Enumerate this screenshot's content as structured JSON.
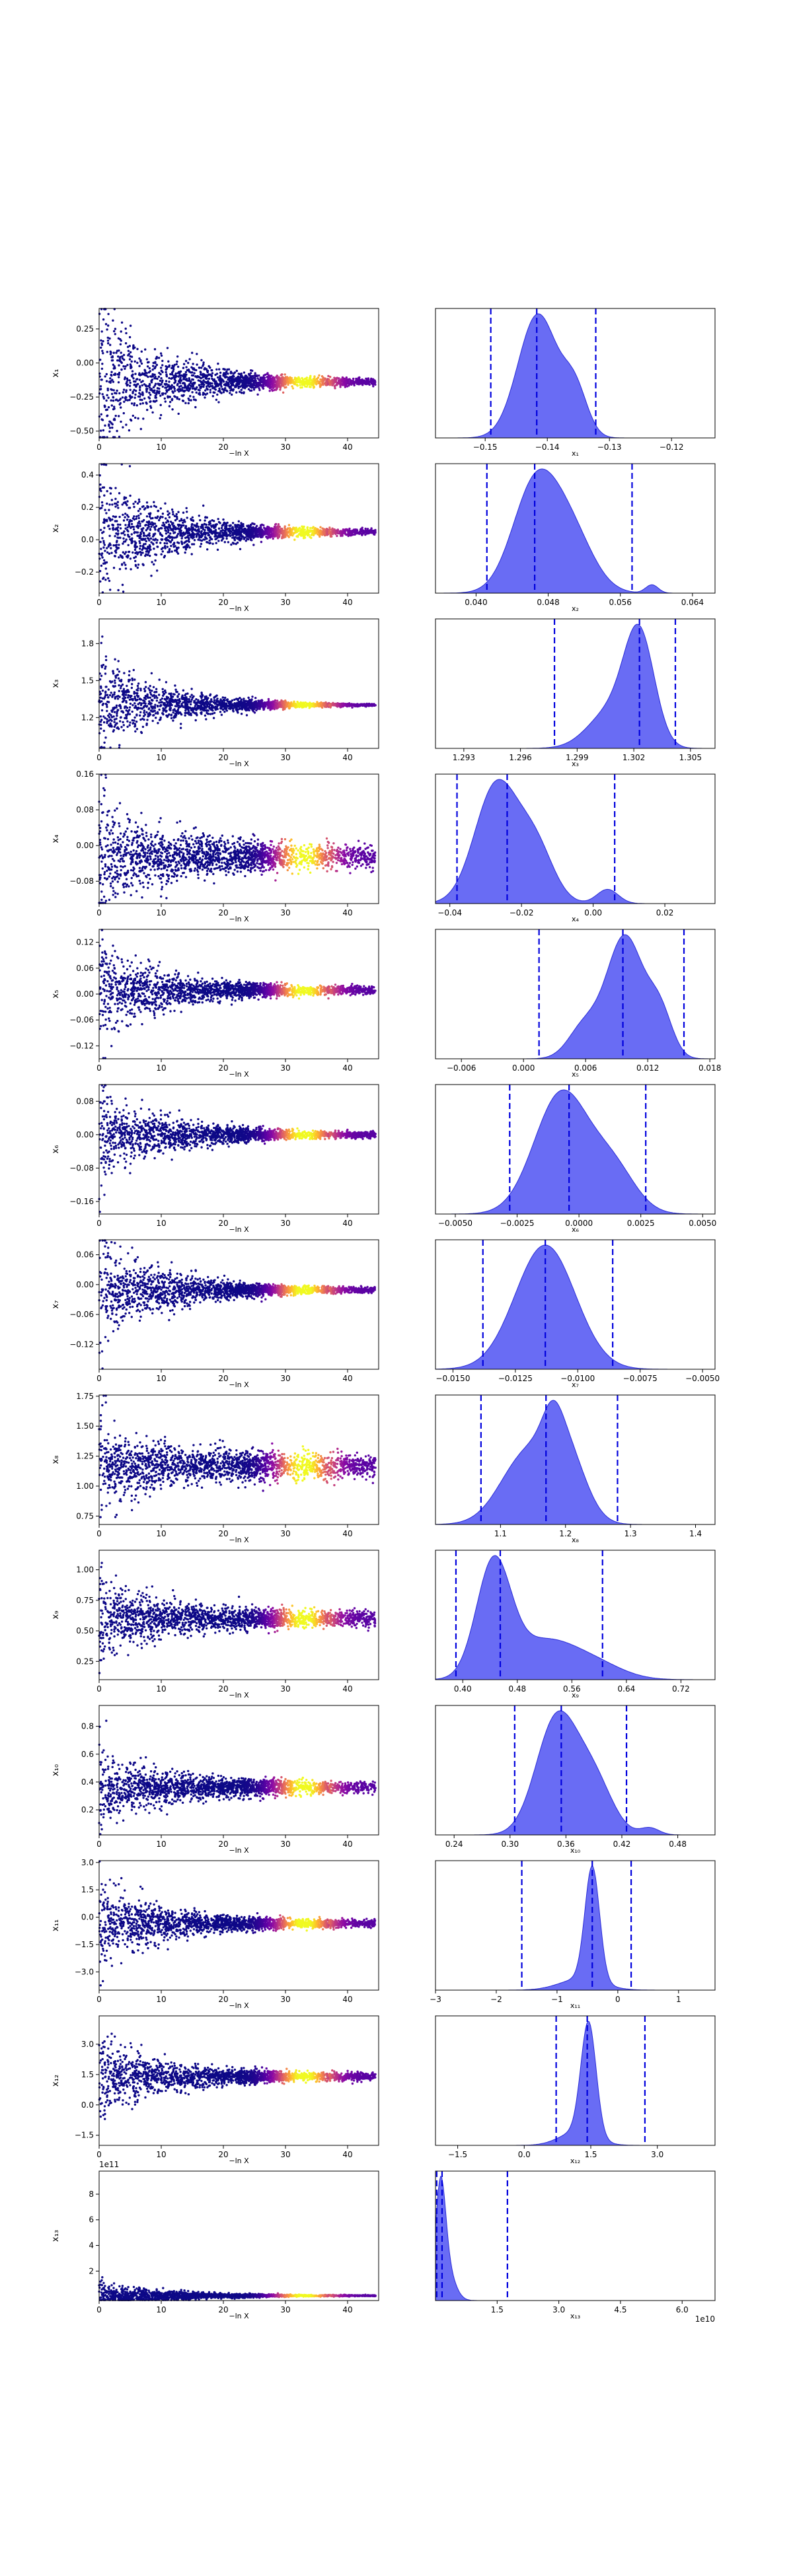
{
  "figure": {
    "type": "dynesty-traceplot"
  },
  "colors": {
    "trace_low": "#0d0887",
    "trace_high": "#f0f921",
    "kde_fill": "#4f52f2",
    "kde_edge": "#2a2cd6",
    "quantile": "#0000dd"
  },
  "chart_data": [
    {
      "param": "x1",
      "trace_xlabel": "−ln X",
      "trace_xticks": [
        "0",
        "10",
        "20",
        "30",
        "40"
      ],
      "trace_xlim": [
        0,
        45
      ],
      "trace_ylabel": "x₁",
      "trace_yticks": [
        "−0.50",
        "−0.25",
        "0.00",
        "0.25"
      ],
      "trace_ylim": [
        -0.55,
        0.4
      ],
      "trace_center": -0.14,
      "trace_spread_early": 0.25,
      "trace_spread_late": 0.008,
      "kde_xlabel": "x₁",
      "kde_xticks": [
        "−0.15",
        "−0.14",
        "−0.13",
        "−0.12"
      ],
      "kde_tick_values": [
        -0.15,
        -0.14,
        -0.13,
        -0.12
      ],
      "kde_xlim": [
        -0.158,
        -0.113
      ],
      "kde_peaks": [
        {
          "mu": -0.1415,
          "sigma": 0.0032,
          "h": 1.0
        },
        {
          "mu": -0.1355,
          "sigma": 0.002,
          "h": 0.35
        }
      ],
      "quantiles": [
        -0.1491,
        -0.1417,
        -0.1322
      ]
    },
    {
      "param": "x2",
      "trace_xlabel": "−ln X",
      "trace_xticks": [
        "0",
        "10",
        "20",
        "30",
        "40"
      ],
      "trace_xlim": [
        0,
        45
      ],
      "trace_ylabel": "x₂",
      "trace_yticks": [
        "−0.2",
        "0.0",
        "0.2",
        "0.4"
      ],
      "trace_ylim": [
        -0.33,
        0.47
      ],
      "trace_center": 0.048,
      "trace_spread_early": 0.2,
      "trace_spread_late": 0.005,
      "kde_xlabel": "x₂",
      "kde_xticks": [
        "0.040",
        "0.048",
        "0.056",
        "0.064"
      ],
      "kde_tick_values": [
        0.04,
        0.048,
        0.056,
        0.064
      ],
      "kde_xlim": [
        0.0355,
        0.0665
      ],
      "kde_peaks": [
        {
          "mu": 0.0465,
          "sigma": 0.0025,
          "h": 1.0
        },
        {
          "mu": 0.0505,
          "sigma": 0.0025,
          "h": 0.55
        },
        {
          "mu": 0.0595,
          "sigma": 0.0007,
          "h": 0.08
        }
      ],
      "quantiles": [
        0.0412,
        0.0465,
        0.0573
      ]
    },
    {
      "param": "x3",
      "trace_xlabel": "−ln X",
      "trace_xticks": [
        "0",
        "10",
        "20",
        "30",
        "40"
      ],
      "trace_xlim": [
        0,
        45
      ],
      "trace_ylabel": "x₃",
      "trace_yticks": [
        "1.2",
        "1.5",
        "1.8"
      ],
      "trace_ylim": [
        0.95,
        2.0
      ],
      "trace_center": 1.302,
      "trace_spread_early": 0.18,
      "trace_spread_late": 0.002,
      "kde_xlabel": "x₃",
      "kde_xticks": [
        "1.293",
        "1.296",
        "1.299",
        "1.302",
        "1.305"
      ],
      "kde_tick_values": [
        1.293,
        1.296,
        1.299,
        1.302,
        1.305
      ],
      "kde_xlim": [
        1.2915,
        1.3063
      ],
      "kde_peaks": [
        {
          "mu": 1.3023,
          "sigma": 0.0008,
          "h": 1.0
        },
        {
          "mu": 1.3008,
          "sigma": 0.0012,
          "h": 0.35
        }
      ],
      "quantiles": [
        1.2978,
        1.3023,
        1.3042
      ]
    },
    {
      "param": "x4",
      "trace_xlabel": "−ln X",
      "trace_xticks": [
        "0",
        "10",
        "20",
        "30",
        "40"
      ],
      "trace_xlim": [
        0,
        45
      ],
      "trace_ylabel": "x₄",
      "trace_yticks": [
        "−0.08",
        "0.00",
        "0.08",
        "0.16"
      ],
      "trace_ylim": [
        -0.13,
        0.16
      ],
      "trace_center": -0.025,
      "trace_spread_early": 0.06,
      "trace_spread_late": 0.012,
      "kde_xlabel": "x₄",
      "kde_xticks": [
        "−0.04",
        "−0.02",
        "0.00",
        "0.02"
      ],
      "kde_tick_values": [
        -0.04,
        -0.02,
        0.0,
        0.02
      ],
      "kde_xlim": [
        -0.044,
        0.034
      ],
      "kde_peaks": [
        {
          "mu": -0.027,
          "sigma": 0.006,
          "h": 1.0
        },
        {
          "mu": -0.016,
          "sigma": 0.005,
          "h": 0.45
        },
        {
          "mu": 0.004,
          "sigma": 0.003,
          "h": 0.12
        }
      ],
      "quantiles": [
        -0.038,
        -0.024,
        0.006
      ]
    },
    {
      "param": "x5",
      "trace_xlabel": "−ln X",
      "trace_xticks": [
        "0",
        "10",
        "20",
        "30",
        "40"
      ],
      "trace_xlim": [
        0,
        45
      ],
      "trace_ylabel": "x₅",
      "trace_yticks": [
        "−0.12",
        "−0.06",
        "0.00",
        "0.06",
        "0.12"
      ],
      "trace_ylim": [
        -0.15,
        0.15
      ],
      "trace_center": 0.009,
      "trace_spread_early": 0.05,
      "trace_spread_late": 0.004,
      "kde_xlabel": "x₅",
      "kde_xticks": [
        "−0.006",
        "0.000",
        "0.006",
        "0.012",
        "0.018"
      ],
      "kde_tick_values": [
        -0.006,
        0.0,
        0.006,
        0.012,
        0.018
      ],
      "kde_xlim": [
        -0.0085,
        0.0185
      ],
      "kde_peaks": [
        {
          "mu": 0.0098,
          "sigma": 0.0018,
          "h": 1.0
        },
        {
          "mu": 0.0058,
          "sigma": 0.0015,
          "h": 0.25
        },
        {
          "mu": 0.0132,
          "sigma": 0.0012,
          "h": 0.35
        }
      ],
      "quantiles": [
        0.0015,
        0.0096,
        0.0155
      ]
    },
    {
      "param": "x6",
      "trace_xlabel": "−ln X",
      "trace_xticks": [
        "0",
        "10",
        "20",
        "30",
        "40"
      ],
      "trace_xlim": [
        0,
        45
      ],
      "trace_ylabel": "x₆",
      "trace_yticks": [
        "−0.16",
        "−0.08",
        "0.00",
        "0.08"
      ],
      "trace_ylim": [
        -0.19,
        0.12
      ],
      "trace_center": -0.0003,
      "trace_spread_early": 0.05,
      "trace_spread_late": 0.003,
      "kde_xlabel": "x₆",
      "kde_xticks": [
        "−0.0050",
        "−0.0025",
        "0.0000",
        "0.0025",
        "0.0050"
      ],
      "kde_tick_values": [
        -0.005,
        -0.0025,
        0,
        0.0025,
        0.005
      ],
      "kde_xlim": [
        -0.0058,
        0.0055
      ],
      "kde_peaks": [
        {
          "mu": -0.0007,
          "sigma": 0.0011,
          "h": 1.0
        },
        {
          "mu": 0.0014,
          "sigma": 0.0009,
          "h": 0.35
        }
      ],
      "quantiles": [
        -0.0028,
        -0.0004,
        0.0027
      ]
    },
    {
      "param": "x7",
      "trace_xlabel": "−ln X",
      "trace_xticks": [
        "0",
        "10",
        "20",
        "30",
        "40"
      ],
      "trace_xlim": [
        0,
        45
      ],
      "trace_ylabel": "x₇",
      "trace_yticks": [
        "−0.12",
        "−0.06",
        "0.00",
        "0.06"
      ],
      "trace_ylim": [
        -0.17,
        0.09
      ],
      "trace_center": -0.011,
      "trace_spread_early": 0.05,
      "trace_spread_late": 0.002,
      "kde_xlabel": "x₇",
      "kde_xticks": [
        "−0.0150",
        "−0.0125",
        "−0.0100",
        "−0.0075",
        "−0.0050"
      ],
      "kde_tick_values": [
        -0.015,
        -0.0125,
        -0.01,
        -0.0075,
        -0.005
      ],
      "kde_xlim": [
        -0.0157,
        -0.0045
      ],
      "kde_peaks": [
        {
          "mu": -0.0113,
          "sigma": 0.0012,
          "h": 1.0
        }
      ],
      "quantiles": [
        -0.0138,
        -0.0113,
        -0.0086
      ]
    },
    {
      "param": "x8",
      "trace_xlabel": "−ln X",
      "trace_xticks": [
        "0",
        "10",
        "20",
        "30",
        "40"
      ],
      "trace_xlim": [
        0,
        45
      ],
      "trace_ylabel": "x₈",
      "trace_yticks": [
        "0.75",
        "1.00",
        "1.25",
        "1.50",
        "1.75"
      ],
      "trace_ylim": [
        0.68,
        1.76
      ],
      "trace_center": 1.17,
      "trace_spread_early": 0.16,
      "trace_spread_late": 0.05,
      "kde_xlabel": "x₈",
      "kde_xticks": [
        "1.1",
        "1.2",
        "1.3",
        "1.4"
      ],
      "kde_tick_values": [
        1.1,
        1.2,
        1.3,
        1.4
      ],
      "kde_xlim": [
        1.0,
        1.43
      ],
      "kde_peaks": [
        {
          "mu": 1.14,
          "sigma": 0.04,
          "h": 0.75
        },
        {
          "mu": 1.2,
          "sigma": 0.03,
          "h": 0.75
        },
        {
          "mu": 1.18,
          "sigma": 0.015,
          "h": 0.3
        }
      ],
      "quantiles": [
        1.07,
        1.17,
        1.28
      ]
    },
    {
      "param": "x9",
      "trace_xlabel": "−ln X",
      "trace_xticks": [
        "0",
        "10",
        "20",
        "30",
        "40"
      ],
      "trace_xlim": [
        0,
        45
      ],
      "trace_ylabel": "x₉",
      "trace_yticks": [
        "0.25",
        "0.50",
        "0.75",
        "1.00"
      ],
      "trace_ylim": [
        0.1,
        1.16
      ],
      "trace_center": 0.6,
      "trace_spread_early": 0.15,
      "trace_spread_late": 0.03,
      "kde_xlabel": "x₉",
      "kde_xticks": [
        "0.40",
        "0.48",
        "0.56",
        "0.64",
        "0.72"
      ],
      "kde_tick_values": [
        0.4,
        0.48,
        0.56,
        0.64,
        0.72
      ],
      "kde_xlim": [
        0.36,
        0.77
      ],
      "kde_peaks": [
        {
          "mu": 0.445,
          "sigma": 0.025,
          "h": 1.0
        },
        {
          "mu": 0.52,
          "sigma": 0.05,
          "h": 0.35
        },
        {
          "mu": 0.6,
          "sigma": 0.04,
          "h": 0.1
        }
      ],
      "quantiles": [
        0.39,
        0.455,
        0.605
      ]
    },
    {
      "param": "x10",
      "trace_xlabel": "−ln X",
      "trace_xticks": [
        "0",
        "10",
        "20",
        "30",
        "40"
      ],
      "trace_xlim": [
        0,
        45
      ],
      "trace_ylabel": "x₁₀",
      "trace_yticks": [
        "0.2",
        "0.4",
        "0.6",
        "0.8"
      ],
      "trace_ylim": [
        0.02,
        0.95
      ],
      "trace_center": 0.36,
      "trace_spread_early": 0.12,
      "trace_spread_late": 0.02,
      "kde_xlabel": "x₁₀",
      "kde_xticks": [
        "0.24",
        "0.30",
        "0.36",
        "0.42",
        "0.48"
      ],
      "kde_tick_values": [
        0.24,
        0.3,
        0.36,
        0.42,
        0.48
      ],
      "kde_xlim": [
        0.22,
        0.52
      ],
      "kde_peaks": [
        {
          "mu": 0.35,
          "sigma": 0.022,
          "h": 1.0
        },
        {
          "mu": 0.39,
          "sigma": 0.02,
          "h": 0.45
        },
        {
          "mu": 0.45,
          "sigma": 0.01,
          "h": 0.06
        }
      ],
      "quantiles": [
        0.305,
        0.355,
        0.425
      ]
    },
    {
      "param": "x11",
      "trace_xlabel": "−ln X",
      "trace_xticks": [
        "0",
        "10",
        "20",
        "30",
        "40"
      ],
      "trace_xlim": [
        0,
        45
      ],
      "trace_ylabel": "x₁₁",
      "trace_yticks": [
        "−3.0",
        "−1.5",
        "0.0",
        "1.5",
        "3.0"
      ],
      "trace_ylim": [
        -4.0,
        3.1
      ],
      "trace_center": -0.35,
      "trace_spread_early": 1.1,
      "trace_spread_late": 0.08,
      "kde_xlabel": "x₁₁",
      "kde_xticks": [
        "−3",
        "−2",
        "−1",
        "0",
        "1"
      ],
      "kde_tick_values": [
        -3,
        -2,
        -1,
        0,
        1
      ],
      "kde_xlim": [
        -3.0,
        1.6
      ],
      "kde_peaks": [
        {
          "mu": -0.42,
          "sigma": 0.12,
          "h": 1.0
        },
        {
          "mu": -0.6,
          "sigma": 0.35,
          "h": 0.1
        }
      ],
      "quantiles": [
        -1.58,
        -0.42,
        0.22
      ]
    },
    {
      "param": "x12",
      "trace_xlabel": "−ln X",
      "trace_xticks": [
        "0",
        "10",
        "20",
        "30",
        "40"
      ],
      "trace_xlim": [
        0,
        45
      ],
      "trace_ylabel": "x₁₂",
      "trace_yticks": [
        "−1.5",
        "0.0",
        "1.5",
        "3.0"
      ],
      "trace_ylim": [
        -2.0,
        4.4
      ],
      "trace_center": 1.4,
      "trace_spread_early": 0.9,
      "trace_spread_late": 0.08,
      "kde_xlabel": "x₁₂",
      "kde_xticks": [
        "−1.5",
        "0.0",
        "1.5",
        "3.0"
      ],
      "kde_tick_values": [
        -1.5,
        0,
        1.5,
        3.0
      ],
      "kde_xlim": [
        -2.0,
        4.3
      ],
      "kde_peaks": [
        {
          "mu": 1.45,
          "sigma": 0.17,
          "h": 1.0
        },
        {
          "mu": 1.2,
          "sigma": 0.4,
          "h": 0.12
        }
      ],
      "quantiles": [
        0.72,
        1.42,
        2.72
      ]
    },
    {
      "param": "x13",
      "trace_xlabel": "−ln X",
      "trace_xticks": [
        "0",
        "10",
        "20",
        "30",
        "40"
      ],
      "trace_xlim": [
        0,
        45
      ],
      "trace_ylabel": "x₁₃",
      "trace_yticks": [
        "2",
        "4",
        "6",
        "8"
      ],
      "trace_ylim": [
        -0.3,
        9.8
      ],
      "trace_offset": "1e11",
      "trace_center": 0.08,
      "trace_spread_early": 0.5,
      "trace_spread_late": 0.01,
      "kde_xlabel": "x₁₃",
      "kde_xticks": [
        "1.5",
        "3.0",
        "4.5",
        "6.0"
      ],
      "kde_tick_values": [
        1.5,
        3.0,
        4.5,
        6.0
      ],
      "kde_xlim": [
        0.0,
        6.8
      ],
      "kde_offset": "1e10",
      "kde_peaks": [
        {
          "mu": 0.12,
          "sigma": 0.12,
          "h": 1.0
        },
        {
          "mu": 0.25,
          "sigma": 0.2,
          "h": 0.35
        }
      ],
      "quantiles": [
        0.03,
        0.16,
        1.75
      ]
    }
  ]
}
